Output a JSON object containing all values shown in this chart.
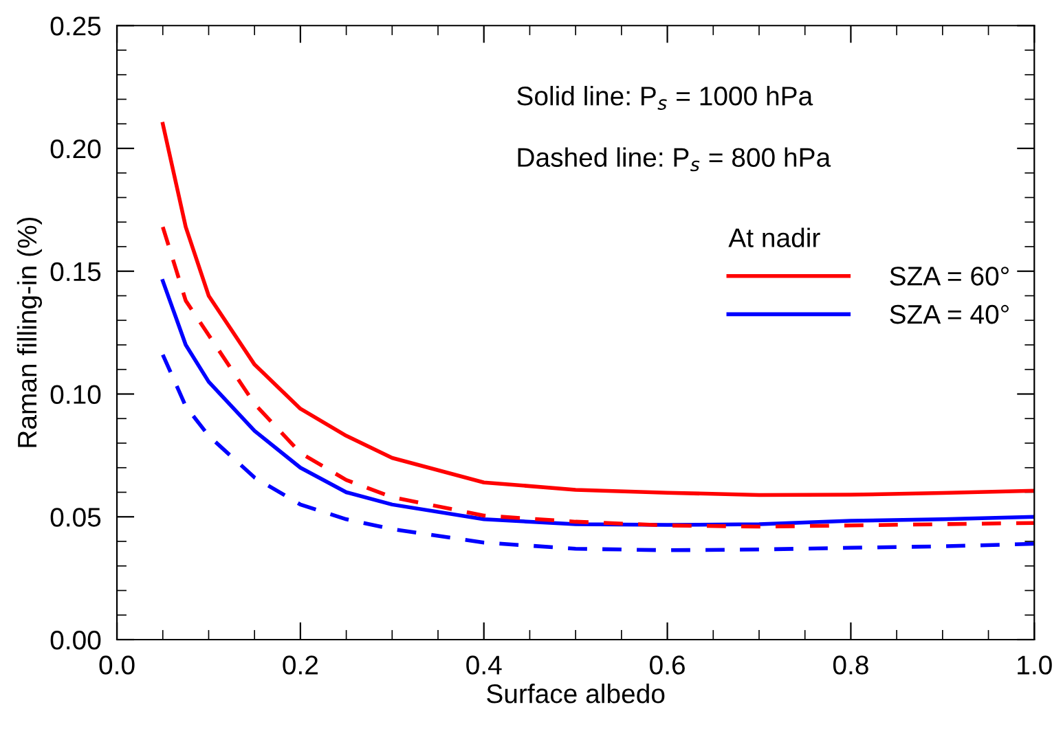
{
  "chart_data": {
    "type": "line",
    "xlabel": "Surface albedo",
    "ylabel": "Raman filling-in (%)",
    "x": [
      0.05,
      0.075,
      0.1,
      0.15,
      0.2,
      0.25,
      0.3,
      0.4,
      0.5,
      0.6,
      0.7,
      0.8,
      0.9,
      1.0
    ],
    "series": [
      {
        "name": "SZA = 60°",
        "color": "#ff0000",
        "line_style": "solid",
        "values": [
          0.21,
          0.168,
          0.14,
          0.112,
          0.094,
          0.083,
          0.074,
          0.064,
          0.061,
          0.0598,
          0.0589,
          0.059,
          0.0597,
          0.0606
        ]
      },
      {
        "name": "SZA = 40°",
        "color": "#0000ff",
        "line_style": "solid",
        "values": [
          0.146,
          0.12,
          0.105,
          0.085,
          0.07,
          0.06,
          0.055,
          0.049,
          0.047,
          0.0467,
          0.047,
          0.0484,
          0.049,
          0.05
        ]
      },
      {
        "color": "#ff0000",
        "line_style": "dashed",
        "values": [
          0.168,
          0.138,
          0.124,
          0.096,
          0.076,
          0.065,
          0.058,
          0.0505,
          0.048,
          0.0465,
          0.046,
          0.0465,
          0.047,
          0.0475
        ]
      },
      {
        "color": "#0000ff",
        "line_style": "dashed",
        "values": [
          0.116,
          0.095,
          0.083,
          0.066,
          0.055,
          0.049,
          0.045,
          0.0395,
          0.037,
          0.0364,
          0.0367,
          0.0374,
          0.038,
          0.039
        ]
      }
    ],
    "xlim": [
      0.0,
      1.0
    ],
    "ylim": [
      0.0,
      0.25
    ],
    "xticks": [
      {
        "value": 0.0,
        "label": "0.0"
      },
      0.2,
      0.4,
      0.6,
      0.8,
      {
        "value": 1.0,
        "label": "1.0"
      }
    ],
    "yticks": [
      {
        "value": 0.0,
        "label": "0.00"
      },
      0.05,
      {
        "value": 0.1,
        "label": "0.10"
      },
      0.15,
      {
        "value": 0.2,
        "label": "0.20"
      },
      0.25
    ],
    "legend": "top right",
    "legend_title": "At nadir",
    "grid": false,
    "annotations": [
      "Solid line: P$_{s}$ = 1000 hPa",
      "Dashed line: P$_{s}$ = 800 hPa"
    ]
  }
}
